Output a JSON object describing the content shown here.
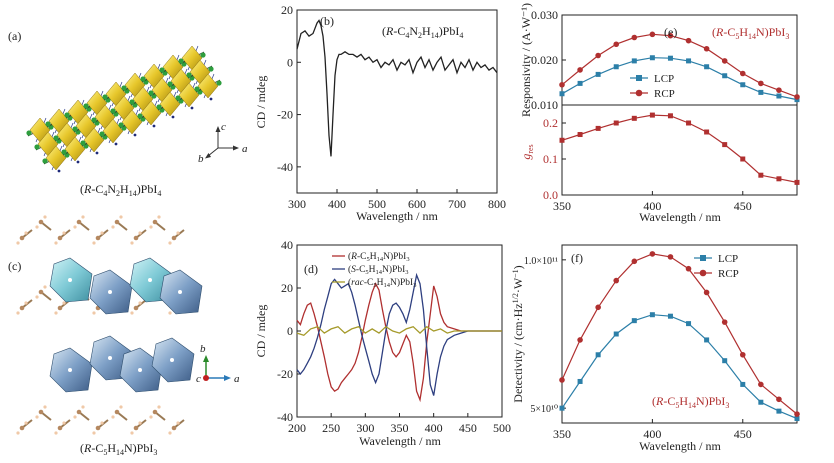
{
  "panels": {
    "a": {
      "label": "(a)",
      "caption": "(R-C4N2H14)PbI4",
      "axes": {
        "c": "c",
        "b": "b",
        "a": "a"
      }
    },
    "c": {
      "label": "(c)",
      "caption": "(R-C5H14N)PbI3",
      "axes": {
        "b": "b",
        "c": "c",
        "a": "a"
      }
    }
  },
  "chart_data": [
    {
      "id": "b",
      "panel_label": "(b)",
      "type": "line",
      "title": "(R-C4N2H14)PbI4",
      "xlabel": "Wavelength / nm",
      "ylabel": "CD / mdeg",
      "xlim": [
        300,
        800
      ],
      "ylim": [
        -50,
        20
      ],
      "xticks": [
        300,
        400,
        500,
        600,
        700,
        800
      ],
      "yticks": [
        -40,
        -20,
        0,
        20
      ],
      "series": [
        {
          "color": "#222222",
          "x": [
            300,
            310,
            320,
            330,
            340,
            345,
            350,
            355,
            360,
            365,
            370,
            375,
            380,
            385,
            390,
            395,
            400,
            405,
            410,
            420,
            430,
            440,
            450,
            460,
            470,
            480,
            490,
            500,
            510,
            520,
            530,
            540,
            550,
            560,
            570,
            580,
            590,
            600,
            610,
            620,
            630,
            640,
            650,
            660,
            670,
            680,
            690,
            700,
            710,
            720,
            730,
            740,
            750,
            760,
            770,
            780,
            790,
            800
          ],
          "y": [
            5,
            11,
            12,
            10,
            11,
            13,
            15,
            16,
            14,
            10,
            2,
            -12,
            -28,
            -36,
            -20,
            -5,
            1,
            3,
            3,
            4,
            3,
            3,
            2,
            3,
            1,
            2,
            0,
            1,
            -2,
            0,
            -1,
            1,
            -3,
            0,
            -1,
            1,
            -4,
            0,
            2,
            -2,
            1,
            -3,
            0,
            2,
            -3,
            -1,
            1,
            -4,
            0,
            -2,
            1,
            -3,
            0,
            -2,
            -1,
            -3,
            -2,
            -4
          ]
        }
      ]
    },
    {
      "id": "d",
      "panel_label": "(d)",
      "type": "line",
      "xlabel": "Wavelength / nm",
      "ylabel": "CD / mdeg",
      "xlim": [
        200,
        500
      ],
      "ylim": [
        -40,
        40
      ],
      "xticks": [
        200,
        250,
        300,
        350,
        400,
        450,
        500
      ],
      "yticks": [
        -40,
        -20,
        0,
        20,
        40
      ],
      "legend_position": "top-left",
      "series": [
        {
          "name": "(R-C5H14N)PbI3",
          "color": "#b03030",
          "x": [
            200,
            205,
            210,
            215,
            220,
            225,
            230,
            235,
            240,
            245,
            250,
            255,
            260,
            265,
            270,
            275,
            280,
            285,
            290,
            295,
            300,
            305,
            310,
            315,
            320,
            325,
            330,
            335,
            340,
            345,
            350,
            355,
            360,
            365,
            370,
            375,
            380,
            385,
            390,
            395,
            400,
            405,
            410,
            415,
            420,
            430,
            440,
            450,
            460,
            470,
            480,
            490,
            500
          ],
          "y": [
            5,
            3,
            8,
            12,
            13,
            8,
            2,
            -5,
            -12,
            -20,
            -26,
            -28,
            -27,
            -24,
            -22,
            -20,
            -18,
            -15,
            -10,
            -3,
            5,
            12,
            18,
            22,
            19,
            10,
            2,
            -5,
            -10,
            -12,
            -10,
            -6,
            -2,
            -5,
            -15,
            -28,
            -32,
            -22,
            -5,
            8,
            21,
            16,
            8,
            4,
            2,
            1,
            0,
            0,
            0,
            0,
            0,
            0,
            0
          ]
        },
        {
          "name": "(S-C5H14N)PbI3",
          "color": "#2e3f80",
          "x": [
            200,
            205,
            210,
            215,
            220,
            225,
            230,
            235,
            240,
            245,
            250,
            255,
            260,
            265,
            270,
            275,
            280,
            285,
            290,
            295,
            300,
            305,
            310,
            315,
            320,
            325,
            330,
            335,
            340,
            345,
            350,
            355,
            360,
            365,
            370,
            375,
            380,
            385,
            390,
            395,
            400,
            405,
            410,
            415,
            420,
            430,
            440,
            450,
            460,
            470,
            480,
            490,
            500
          ],
          "y": [
            -18,
            -20,
            -18,
            -15,
            -12,
            -8,
            -3,
            3,
            10,
            16,
            22,
            24,
            22,
            20,
            21,
            22,
            18,
            12,
            5,
            -2,
            -8,
            -14,
            -20,
            -24,
            -20,
            -10,
            0,
            8,
            12,
            13,
            11,
            8,
            4,
            10,
            18,
            26,
            22,
            10,
            -8,
            -25,
            -30,
            -20,
            -12,
            -7,
            -4,
            -2,
            -1,
            0,
            0,
            0,
            0,
            0,
            0
          ]
        },
        {
          "name": "(rac-C5H14N)PbI3",
          "color": "#a59a2a",
          "x": [
            200,
            210,
            220,
            230,
            240,
            250,
            260,
            270,
            280,
            290,
            300,
            310,
            320,
            330,
            340,
            350,
            360,
            370,
            380,
            390,
            400,
            410,
            420,
            430,
            440,
            450,
            460,
            470,
            480,
            490,
            500
          ],
          "y": [
            -1,
            -2,
            1,
            2,
            -1,
            1,
            2,
            -1,
            1,
            2,
            -1,
            1,
            -1,
            2,
            0,
            -1,
            1,
            2,
            -1,
            2,
            0,
            1,
            -1,
            0,
            0,
            0,
            0,
            0,
            0,
            0,
            0
          ]
        }
      ]
    },
    {
      "id": "e",
      "panel_label": "(e)",
      "type": "line",
      "title": "(R-C5H14N)PbI3",
      "xlabel": "Wavelength / nm",
      "xlim": [
        350,
        480
      ],
      "xticks": [
        350,
        400,
        450
      ],
      "top": {
        "ylabel": "Responsivity / (A·W⁻¹)",
        "ylim": [
          0.01,
          0.03
        ],
        "yticks": [
          0.01,
          0.02,
          0.03
        ],
        "series": [
          {
            "name": "LCP",
            "color": "#2c7fa8",
            "x": [
              350,
              360,
              370,
              380,
              390,
              400,
              410,
              420,
              430,
              440,
              450,
              460,
              470,
              480
            ],
            "y": [
              0.0125,
              0.0148,
              0.0168,
              0.0185,
              0.0198,
              0.0205,
              0.0204,
              0.0198,
              0.0185,
              0.0165,
              0.0145,
              0.0128,
              0.012,
              0.0112
            ]
          },
          {
            "name": "RCP",
            "color": "#b03030",
            "x": [
              350,
              360,
              370,
              380,
              390,
              400,
              410,
              420,
              430,
              440,
              450,
              460,
              470,
              480
            ],
            "y": [
              0.0145,
              0.0178,
              0.021,
              0.0235,
              0.025,
              0.0257,
              0.0254,
              0.0243,
              0.0225,
              0.0198,
              0.017,
              0.0148,
              0.0133,
              0.0118
            ]
          }
        ]
      },
      "bottom": {
        "ylabel": "g_res",
        "ylim": [
          0,
          0.25
        ],
        "yticks": [
          0.0,
          0.1,
          0.2
        ],
        "series": [
          {
            "color": "#b03030",
            "x": [
              350,
              360,
              370,
              380,
              390,
              400,
              410,
              420,
              430,
              440,
              450,
              460,
              470,
              480
            ],
            "y": [
              0.152,
              0.168,
              0.185,
              0.2,
              0.213,
              0.222,
              0.22,
              0.2,
              0.175,
              0.14,
              0.1,
              0.055,
              0.045,
              0.035
            ]
          }
        ]
      }
    },
    {
      "id": "f",
      "panel_label": "(f)",
      "type": "line",
      "title": "(R-C5H14N)PbI3",
      "xlabel": "Wavelength / nm",
      "ylabel": "Detectivity / (cm·Hz1/2·W⁻¹)",
      "xlim": [
        350,
        480
      ],
      "xticks": [
        350,
        400,
        450
      ],
      "ylim": [
        45000000000.0,
        105000000000.0
      ],
      "yticks": [
        50000000000.0,
        100000000000.0
      ],
      "ytick_labels": [
        "5×10¹⁰",
        "1.0×10¹¹"
      ],
      "legend_position": "top-right",
      "series": [
        {
          "name": "LCP",
          "color": "#2c7fa8",
          "x": [
            350,
            360,
            370,
            380,
            390,
            400,
            410,
            420,
            430,
            440,
            450,
            460,
            470,
            480
          ],
          "y": [
            50000000000.0,
            59000000000.0,
            68000000000.0,
            75000000000.0,
            79500000000.0,
            81500000000.0,
            81000000000.0,
            78500000000.0,
            73000000000.0,
            66000000000.0,
            58000000000.0,
            52000000000.0,
            49000000000.0,
            46500000000.0
          ]
        },
        {
          "name": "RCP",
          "color": "#b03030",
          "x": [
            350,
            360,
            370,
            380,
            390,
            400,
            410,
            420,
            430,
            440,
            450,
            460,
            470,
            480
          ],
          "y": [
            59500000000.0,
            73000000000.0,
            84000000000.0,
            93000000000.0,
            99500000000.0,
            102000000000.0,
            101000000000.0,
            97000000000.0,
            89000000000.0,
            79000000000.0,
            68000000000.0,
            58000000000.0,
            53000000000.0,
            48000000000.0
          ]
        }
      ]
    }
  ]
}
